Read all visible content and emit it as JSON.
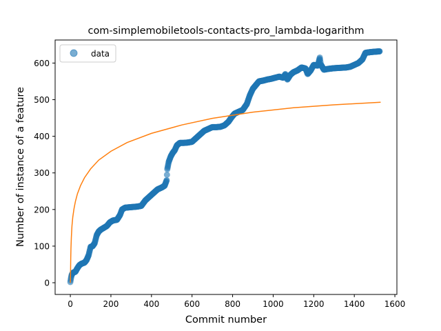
{
  "chart_data": {
    "type": "scatter",
    "title": "com-simplemobiletools-contacts-pro_lambda-logarithm",
    "xlabel": "Commit number",
    "ylabel": "Number of instance of a feature",
    "xlim": [
      -75,
      1610
    ],
    "ylim": [
      -32,
      663
    ],
    "xticks": [
      0,
      200,
      400,
      600,
      800,
      1000,
      1200,
      1400,
      1600
    ],
    "yticks": [
      0,
      100,
      200,
      300,
      400,
      500,
      600
    ],
    "grid": false,
    "legend": {
      "placement": "top-left",
      "entries": [
        "data"
      ]
    },
    "colors": {
      "data": "#1f77b4",
      "fit": "#ff7f0e"
    },
    "series": [
      {
        "name": "data",
        "kind": "scatter",
        "points": [
          [
            0,
            2
          ],
          [
            3,
            12
          ],
          [
            6,
            20
          ],
          [
            10,
            25
          ],
          [
            15,
            28
          ],
          [
            25,
            30
          ],
          [
            35,
            40
          ],
          [
            45,
            48
          ],
          [
            55,
            52
          ],
          [
            70,
            55
          ],
          [
            80,
            62
          ],
          [
            90,
            75
          ],
          [
            100,
            98
          ],
          [
            110,
            100
          ],
          [
            120,
            108
          ],
          [
            130,
            130
          ],
          [
            140,
            140
          ],
          [
            150,
            145
          ],
          [
            165,
            150
          ],
          [
            180,
            155
          ],
          [
            195,
            165
          ],
          [
            210,
            170
          ],
          [
            230,
            172
          ],
          [
            245,
            185
          ],
          [
            255,
            200
          ],
          [
            270,
            205
          ],
          [
            290,
            206
          ],
          [
            310,
            207
          ],
          [
            330,
            208
          ],
          [
            350,
            210
          ],
          [
            370,
            225
          ],
          [
            390,
            235
          ],
          [
            410,
            245
          ],
          [
            430,
            255
          ],
          [
            450,
            260
          ],
          [
            465,
            265
          ],
          [
            475,
            280
          ],
          [
            478,
            310
          ],
          [
            485,
            330
          ],
          [
            495,
            345
          ],
          [
            505,
            355
          ],
          [
            515,
            362
          ],
          [
            525,
            375
          ],
          [
            540,
            382
          ],
          [
            560,
            382
          ],
          [
            580,
            383
          ],
          [
            600,
            385
          ],
          [
            620,
            395
          ],
          [
            640,
            405
          ],
          [
            660,
            415
          ],
          [
            680,
            420
          ],
          [
            700,
            425
          ],
          [
            720,
            425
          ],
          [
            740,
            426
          ],
          [
            760,
            430
          ],
          [
            780,
            440
          ],
          [
            795,
            452
          ],
          [
            810,
            462
          ],
          [
            830,
            467
          ],
          [
            850,
            472
          ],
          [
            870,
            488
          ],
          [
            885,
            512
          ],
          [
            900,
            530
          ],
          [
            915,
            540
          ],
          [
            930,
            550
          ],
          [
            950,
            552
          ],
          [
            970,
            555
          ],
          [
            990,
            557
          ],
          [
            1010,
            560
          ],
          [
            1030,
            563
          ],
          [
            1050,
            560
          ],
          [
            1060,
            570
          ],
          [
            1070,
            555
          ],
          [
            1085,
            568
          ],
          [
            1100,
            575
          ],
          [
            1120,
            580
          ],
          [
            1140,
            588
          ],
          [
            1160,
            585
          ],
          [
            1170,
            570
          ],
          [
            1185,
            580
          ],
          [
            1200,
            595
          ],
          [
            1220,
            593
          ],
          [
            1230,
            615
          ],
          [
            1235,
            596
          ],
          [
            1250,
            582
          ],
          [
            1270,
            584
          ],
          [
            1300,
            586
          ],
          [
            1330,
            587
          ],
          [
            1360,
            588
          ],
          [
            1380,
            590
          ],
          [
            1400,
            595
          ],
          [
            1420,
            600
          ],
          [
            1440,
            610
          ],
          [
            1455,
            628
          ],
          [
            1480,
            630
          ],
          [
            1500,
            631
          ],
          [
            1525,
            632
          ]
        ]
      },
      {
        "name": "",
        "kind": "line",
        "points": [
          [
            0,
            0
          ],
          [
            1,
            26
          ],
          [
            2,
            68
          ],
          [
            3,
            93
          ],
          [
            5,
            124
          ],
          [
            8,
            155
          ],
          [
            12,
            179
          ],
          [
            18,
            202
          ],
          [
            25,
            222
          ],
          [
            35,
            243
          ],
          [
            50,
            265
          ],
          [
            70,
            287
          ],
          [
            100,
            311
          ],
          [
            140,
            335
          ],
          [
            200,
            359
          ],
          [
            280,
            383
          ],
          [
            400,
            408
          ],
          [
            550,
            431
          ],
          [
            700,
            449
          ],
          [
            900,
            466
          ],
          [
            1100,
            478
          ],
          [
            1300,
            486
          ],
          [
            1530,
            493
          ]
        ]
      }
    ]
  }
}
